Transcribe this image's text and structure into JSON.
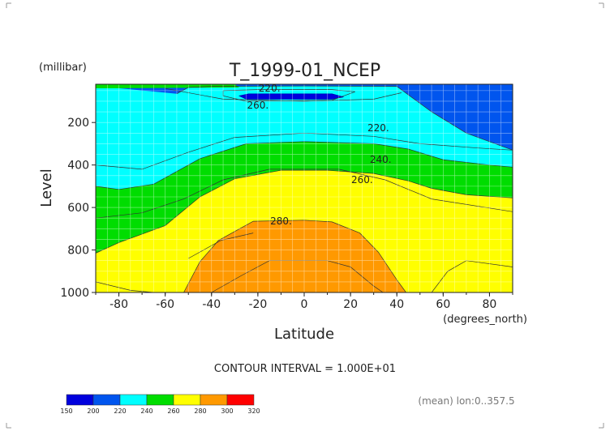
{
  "chart_data": {
    "type": "heatmap",
    "title": "T_1999-01_NCEP",
    "xlabel": "Latitude",
    "x_units": "(degrees_north)",
    "ylabel": "Level",
    "y_units": "(millibar)",
    "xlim": [
      -90,
      90
    ],
    "ylim": [
      1000,
      20
    ],
    "y_reversed": true,
    "x_ticks": [
      "-80",
      "-60",
      "-40",
      "-20",
      "0",
      "20",
      "40",
      "60",
      "80"
    ],
    "x_tick_values": [
      -80,
      -60,
      -40,
      -20,
      0,
      20,
      40,
      60,
      80
    ],
    "y_ticks": [
      "200",
      "400",
      "600",
      "800",
      "1000"
    ],
    "y_tick_values": [
      200,
      400,
      600,
      800,
      1000
    ],
    "grid": true,
    "contour_interval_text": "CONTOUR INTERVAL = 1.000E+01",
    "averaging_text": "(mean) lon:0..357.5",
    "contour_labels": [
      {
        "text": "220.",
        "lat": -15,
        "level": 40
      },
      {
        "text": "260.",
        "lat": -20,
        "level": 120
      },
      {
        "text": "220.",
        "lat": 32,
        "level": 225
      },
      {
        "text": "240.",
        "lat": 33,
        "level": 375
      },
      {
        "text": "260.",
        "lat": 25,
        "level": 470
      },
      {
        "text": "280.",
        "lat": -10,
        "level": 665
      }
    ],
    "legend": {
      "bounds": [
        "150",
        "200",
        "220",
        "240",
        "260",
        "280",
        "300",
        "320"
      ],
      "colors": [
        "#0000dd",
        "#0055ee",
        "#00ffff",
        "#00dd00",
        "#ffff00",
        "#ff9900",
        "#ff0000"
      ]
    },
    "bands": [
      {
        "range": "200-220",
        "color": "#0055ee",
        "boundary_lower": [
          [
            -90,
            20
          ],
          [
            -85,
            22
          ],
          [
            -60,
            24
          ],
          [
            -30,
            30
          ],
          [
            -10,
            32
          ],
          [
            20,
            32
          ],
          [
            40,
            30
          ],
          [
            60,
            26
          ],
          [
            90,
            22
          ]
        ],
        "boundary_upper": [
          [
            -90,
            20
          ],
          [
            90,
            20
          ]
        ]
      },
      {
        "range": "210-220",
        "color": "#0055ee",
        "boundary": [
          [
            -55,
            65
          ],
          [
            -50,
            35
          ],
          [
            -40,
            30
          ],
          [
            0,
            28
          ],
          [
            40,
            30
          ],
          [
            55,
            150
          ],
          [
            70,
            250
          ],
          [
            90,
            330
          ]
        ]
      },
      {
        "range": "220-240",
        "color": "#00ffff",
        "boundary": [
          [
            -90,
            500
          ],
          [
            -80,
            515
          ],
          [
            -65,
            490
          ],
          [
            -45,
            370
          ],
          [
            -25,
            300
          ],
          [
            0,
            290
          ],
          [
            30,
            300
          ],
          [
            45,
            325
          ],
          [
            60,
            375
          ],
          [
            80,
            400
          ],
          [
            90,
            410
          ]
        ]
      },
      {
        "range": "240-260",
        "color": "#00dd00",
        "boundary": [
          [
            -90,
            815
          ],
          [
            -80,
            765
          ],
          [
            -60,
            685
          ],
          [
            -45,
            550
          ],
          [
            -30,
            465
          ],
          [
            -10,
            425
          ],
          [
            10,
            425
          ],
          [
            30,
            440
          ],
          [
            45,
            475
          ],
          [
            55,
            510
          ],
          [
            70,
            540
          ],
          [
            90,
            555
          ]
        ]
      },
      {
        "range": "260-280",
        "color": "#ffff00",
        "boundary": [
          [
            -52,
            1000
          ],
          [
            -45,
            855
          ],
          [
            -37,
            755
          ],
          [
            -22,
            665
          ],
          [
            0,
            660
          ],
          [
            12,
            668
          ],
          [
            24,
            720
          ],
          [
            32,
            810
          ],
          [
            40,
            940
          ],
          [
            44,
            1000
          ]
        ]
      },
      {
        "range": "270-280",
        "color": "#ffff00",
        "boundary": [
          [
            -50,
            840
          ],
          [
            -36,
            755
          ],
          [
            -22,
            720
          ]
        ]
      },
      {
        "range": "280-290",
        "color": "#ff9900",
        "boundary": [
          [
            -40,
            1000
          ],
          [
            -27,
            920
          ],
          [
            -15,
            850
          ],
          [
            10,
            850
          ],
          [
            20,
            880
          ],
          [
            30,
            970
          ],
          [
            34,
            1000
          ]
        ]
      },
      {
        "range": "150-200",
        "color": "#0000dd",
        "boundary": [
          [
            -28,
            75
          ],
          [
            -24,
            65
          ],
          [
            12,
            65
          ],
          [
            17,
            80
          ],
          [
            12,
            90
          ],
          [
            -25,
            90
          ]
        ]
      }
    ]
  }
}
